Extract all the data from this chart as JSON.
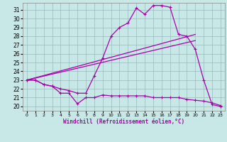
{
  "xlabel": "Windchill (Refroidissement éolien,°C)",
  "bg_color": "#c8e8e8",
  "grid_color": "#99bbbb",
  "line_color": "#aa00aa",
  "xlim": [
    -0.5,
    23.5
  ],
  "ylim": [
    19.5,
    31.8
  ],
  "xticks": [
    0,
    1,
    2,
    3,
    4,
    5,
    6,
    7,
    8,
    9,
    10,
    11,
    12,
    13,
    14,
    15,
    16,
    17,
    18,
    19,
    20,
    21,
    22,
    23
  ],
  "yticks": [
    20,
    21,
    22,
    23,
    24,
    25,
    26,
    27,
    28,
    29,
    30,
    31
  ],
  "curve_hump_x": [
    0,
    1,
    2,
    3,
    4,
    5,
    6,
    7,
    8,
    9,
    10,
    11,
    12,
    13,
    14,
    15,
    16,
    17,
    18,
    19,
    20,
    21,
    22,
    23
  ],
  "curve_hump_y": [
    23,
    23,
    22.5,
    22.3,
    22.0,
    21.8,
    21.5,
    21.5,
    23.5,
    25.5,
    28.0,
    29.0,
    29.5,
    31.2,
    30.5,
    31.5,
    31.5,
    31.3,
    28.2,
    28.0,
    26.5,
    23.0,
    20.2,
    20.0
  ],
  "curve_low_x": [
    0,
    1,
    2,
    3,
    4,
    5,
    6,
    7,
    8,
    9,
    10,
    11,
    12,
    13,
    14,
    15,
    16,
    17,
    18,
    19,
    20,
    21,
    22,
    23
  ],
  "curve_low_y": [
    23,
    23,
    22.5,
    22.3,
    21.5,
    21.5,
    20.3,
    21.0,
    21.0,
    21.3,
    21.2,
    21.2,
    21.2,
    21.2,
    21.2,
    21.0,
    21.0,
    21.0,
    21.0,
    20.8,
    20.7,
    20.6,
    20.4,
    20.1
  ],
  "line1_x": [
    0,
    20
  ],
  "line1_y": [
    23.0,
    28.2
  ],
  "line2_x": [
    0,
    20
  ],
  "line2_y": [
    23.0,
    27.5
  ]
}
